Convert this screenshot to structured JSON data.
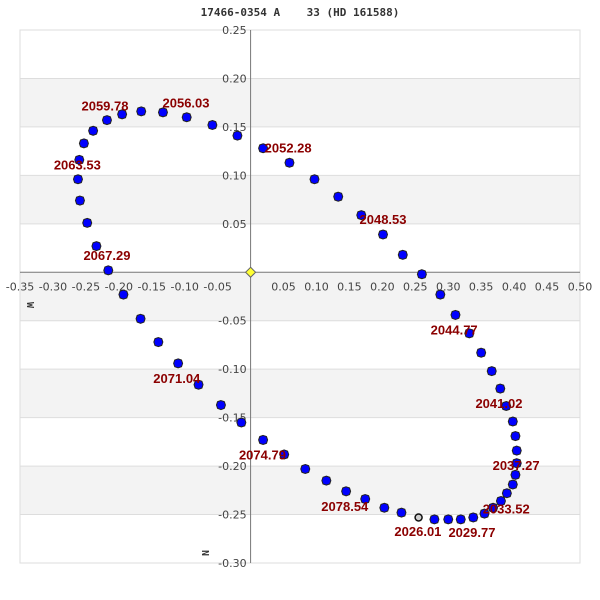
{
  "chart_data": {
    "type": "scatter",
    "title": "17466-0354 A    33 (HD 161588)",
    "xlabel": "W",
    "ylabel": "N",
    "xlim": [
      -0.35,
      0.5
    ],
    "ylim": [
      -0.3,
      0.25
    ],
    "xticks": [
      -0.35,
      -0.3,
      -0.25,
      -0.2,
      -0.15,
      -0.1,
      -0.05,
      0.05,
      0.1,
      0.15,
      0.2,
      0.25,
      0.3,
      0.35,
      0.4,
      0.45,
      0.5
    ],
    "yticks": [
      0.25,
      0.2,
      0.15,
      0.1,
      0.05,
      -0.05,
      -0.1,
      -0.15,
      -0.2,
      -0.25,
      -0.3
    ],
    "grid": true,
    "colors": {
      "points": "#0000ff",
      "point_edge": "#222222",
      "current": "#d0d0d0",
      "origin": "#ffff33",
      "labels": "#8b0000",
      "band": "#f3f3f3",
      "grid": "#dddddd",
      "axis": "#777777"
    },
    "current_point": {
      "x": 0.255,
      "y": -0.253,
      "label": "2026.01"
    },
    "origin_marker": {
      "x": 0,
      "y": 0
    },
    "points": [
      [
        0.279,
        -0.255
      ],
      [
        0.3,
        -0.255
      ],
      [
        0.319,
        -0.255
      ],
      [
        0.338,
        -0.253
      ],
      [
        0.355,
        -0.249
      ],
      [
        0.368,
        -0.243
      ],
      [
        0.38,
        -0.236
      ],
      [
        0.389,
        -0.228
      ],
      [
        0.398,
        -0.219
      ],
      [
        0.402,
        -0.209
      ],
      [
        0.404,
        -0.197
      ],
      [
        0.404,
        -0.184
      ],
      [
        0.402,
        -0.169
      ],
      [
        0.398,
        -0.154
      ],
      [
        0.388,
        -0.138
      ],
      [
        0.379,
        -0.12
      ],
      [
        0.366,
        -0.102
      ],
      [
        0.35,
        -0.083
      ],
      [
        0.332,
        -0.063
      ],
      [
        0.311,
        -0.044
      ],
      [
        0.288,
        -0.023
      ],
      [
        0.26,
        -0.002
      ],
      [
        0.231,
        0.018
      ],
      [
        0.201,
        0.039
      ],
      [
        0.168,
        0.059
      ],
      [
        0.133,
        0.078
      ],
      [
        0.097,
        0.096
      ],
      [
        0.059,
        0.113
      ],
      [
        0.019,
        0.128
      ],
      [
        -0.02,
        0.141
      ],
      [
        -0.058,
        0.152
      ],
      [
        -0.097,
        0.16
      ],
      [
        -0.133,
        0.165
      ],
      [
        -0.166,
        0.166
      ],
      [
        -0.195,
        0.163
      ],
      [
        -0.218,
        0.157
      ],
      [
        -0.239,
        0.146
      ],
      [
        -0.253,
        0.133
      ],
      [
        -0.26,
        0.116
      ],
      [
        -0.262,
        0.096
      ],
      [
        -0.259,
        0.074
      ],
      [
        -0.248,
        0.051
      ],
      [
        -0.234,
        0.027
      ],
      [
        -0.216,
        0.002
      ],
      [
        -0.193,
        -0.023
      ],
      [
        -0.167,
        -0.048
      ],
      [
        -0.14,
        -0.072
      ],
      [
        -0.11,
        -0.094
      ],
      [
        -0.079,
        -0.116
      ],
      [
        -0.045,
        -0.137
      ],
      [
        -0.014,
        -0.155
      ],
      [
        0.019,
        -0.173
      ],
      [
        0.051,
        -0.188
      ],
      [
        0.083,
        -0.203
      ],
      [
        0.115,
        -0.215
      ],
      [
        0.145,
        -0.226
      ],
      [
        0.174,
        -0.234
      ],
      [
        0.203,
        -0.243
      ],
      [
        0.229,
        -0.248
      ]
    ],
    "annotations": [
      {
        "text": "2026.01",
        "x": 0.254,
        "y": -0.267
      },
      {
        "text": "2029.77",
        "x": 0.336,
        "y": -0.268
      },
      {
        "text": "2033.52",
        "x": 0.388,
        "y": -0.244
      },
      {
        "text": "2037.27",
        "x": 0.403,
        "y": -0.199
      },
      {
        "text": "2041.02",
        "x": 0.377,
        "y": -0.135
      },
      {
        "text": "2044.77",
        "x": 0.309,
        "y": -0.059
      },
      {
        "text": "2048.53",
        "x": 0.201,
        "y": 0.055
      },
      {
        "text": "2052.28",
        "x": 0.057,
        "y": 0.129
      },
      {
        "text": "2056.03",
        "x": -0.098,
        "y": 0.175
      },
      {
        "text": "2059.78",
        "x": -0.221,
        "y": 0.172
      },
      {
        "text": "2063.53",
        "x": -0.263,
        "y": 0.111
      },
      {
        "text": "2067.29",
        "x": -0.218,
        "y": 0.018
      },
      {
        "text": "2071.04",
        "x": -0.112,
        "y": -0.109
      },
      {
        "text": "2074.79",
        "x": 0.018,
        "y": -0.188
      },
      {
        "text": "2078.54",
        "x": 0.143,
        "y": -0.241
      }
    ]
  }
}
